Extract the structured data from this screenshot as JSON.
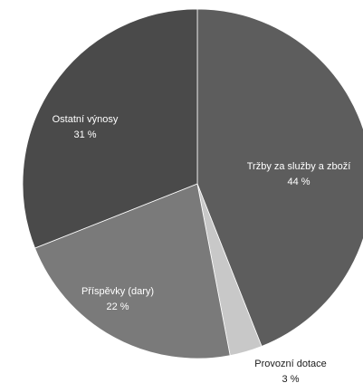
{
  "chart_data": {
    "type": "pie",
    "slices": [
      {
        "label": "Tržby za služby a zboží",
        "value": 44,
        "percent_text": "44 %",
        "color": "#5d5d5d",
        "label_color": "#ffffff"
      },
      {
        "label": "Provozní dotace",
        "value": 3,
        "percent_text": "3 %",
        "color": "#c8c8c8",
        "label_color": "#1a1a1a"
      },
      {
        "label": "Příspěvky (dary)",
        "value": 22,
        "percent_text": "22 %",
        "color": "#7a7a7a",
        "label_color": "#ffffff"
      },
      {
        "label": "Ostatní výnosy",
        "value": 31,
        "percent_text": "31 %",
        "color": "#4a4a4a",
        "label_color": "#ffffff"
      }
    ]
  }
}
